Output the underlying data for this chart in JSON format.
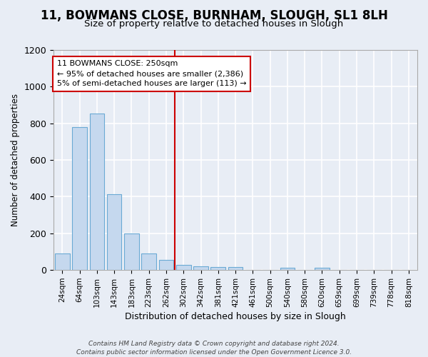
{
  "title1": "11, BOWMANS CLOSE, BURNHAM, SLOUGH, SL1 8LH",
  "title2": "Size of property relative to detached houses in Slough",
  "xlabel": "Distribution of detached houses by size in Slough",
  "ylabel": "Number of detached properties",
  "categories": [
    "24sqm",
    "64sqm",
    "103sqm",
    "143sqm",
    "183sqm",
    "223sqm",
    "262sqm",
    "302sqm",
    "342sqm",
    "381sqm",
    "421sqm",
    "461sqm",
    "500sqm",
    "540sqm",
    "580sqm",
    "620sqm",
    "659sqm",
    "699sqm",
    "739sqm",
    "778sqm",
    "818sqm"
  ],
  "values": [
    90,
    780,
    855,
    415,
    200,
    90,
    55,
    30,
    20,
    15,
    15,
    0,
    0,
    12,
    0,
    12,
    0,
    0,
    0,
    0,
    0
  ],
  "bar_color": "#c5d8ee",
  "bar_edge_color": "#6aaad4",
  "background_color": "#e8edf5",
  "grid_color": "#ffffff",
  "red_line_index": 6,
  "annotation_line1": "11 BOWMANS CLOSE: 250sqm",
  "annotation_line2": "← 95% of detached houses are smaller (2,386)",
  "annotation_line3": "5% of semi-detached houses are larger (113) →",
  "annotation_box_color": "#ffffff",
  "annotation_border_color": "#cc0000",
  "ylim": [
    0,
    1200
  ],
  "yticks": [
    0,
    200,
    400,
    600,
    800,
    1000,
    1200
  ],
  "footer": "Contains HM Land Registry data © Crown copyright and database right 2024.\nContains public sector information licensed under the Open Government Licence 3.0.",
  "title1_fontsize": 12,
  "title2_fontsize": 9.5
}
